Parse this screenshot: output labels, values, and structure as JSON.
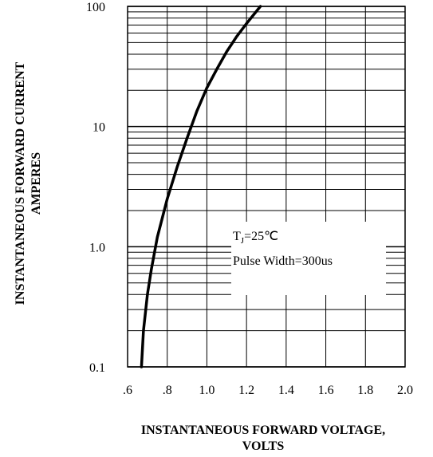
{
  "chart_data": {
    "type": "line",
    "xlabel": [
      "INSTANTANEOUS FORWARD VOLTAGE,",
      "VOLTS"
    ],
    "ylabel": [
      "INSTANTANEOUS FORWARD CURRENT",
      "AMPERES"
    ],
    "x_ticks": [
      {
        "value": 0.6,
        "label": ".6"
      },
      {
        "value": 0.8,
        "label": ".8"
      },
      {
        "value": 1.0,
        "label": "1.0"
      },
      {
        "value": 1.2,
        "label": "1.2"
      },
      {
        "value": 1.4,
        "label": "1.4"
      },
      {
        "value": 1.6,
        "label": "1.6"
      },
      {
        "value": 1.8,
        "label": "1.8"
      },
      {
        "value": 2.0,
        "label": "2.0"
      }
    ],
    "y_ticks": [
      {
        "value": 0.1,
        "label": "0.1"
      },
      {
        "value": 1,
        "label": "1.0"
      },
      {
        "value": 10,
        "label": "10"
      },
      {
        "value": 100,
        "label": "100"
      }
    ],
    "xlim": [
      0.6,
      2.0
    ],
    "ylim": [
      0.1,
      100
    ],
    "y_scale": "log",
    "grid": true,
    "annotation": {
      "line1_main": "T",
      "line1_sub": "J",
      "line1_rest": "=25℃",
      "line2": "Pulse Width=300us"
    },
    "series": [
      {
        "color": "#000000",
        "x": [
          0.67,
          0.68,
          0.7,
          0.72,
          0.75,
          0.8,
          0.85,
          0.9,
          0.95,
          1.0,
          1.05,
          1.1,
          1.15,
          1.2,
          1.27
        ],
        "y": [
          0.1,
          0.2,
          0.4,
          0.65,
          1.2,
          2.5,
          4.6,
          8.0,
          13.5,
          21,
          30,
          42,
          56,
          72,
          100
        ]
      }
    ]
  }
}
